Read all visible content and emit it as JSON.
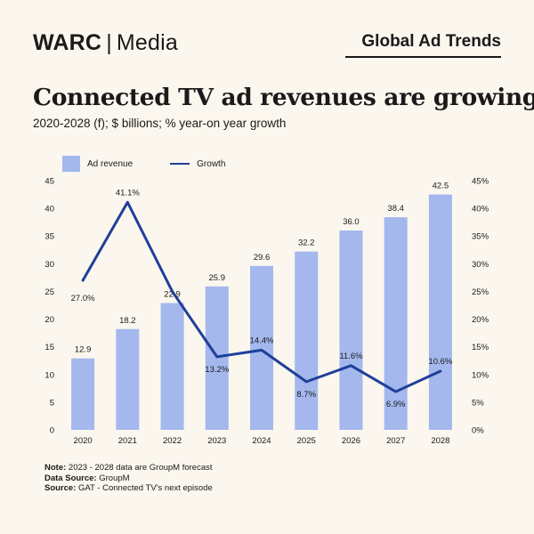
{
  "header": {
    "brand_left": "WARC",
    "brand_sep": "|",
    "brand_right": "Media",
    "series_name": "Global Ad Trends"
  },
  "title": "Connected TV ad revenues are growing",
  "subtitle": "2020-2028 (f); $ billions; % year-on year growth",
  "colors": {
    "bar": "#a4b8ee",
    "line": "#1f3f99",
    "background": "#fbf6ee"
  },
  "chart_data": {
    "type": "bar",
    "categories": [
      "2020",
      "2021",
      "2022",
      "2023",
      "2024",
      "2025",
      "2026",
      "2027",
      "2028"
    ],
    "series": [
      {
        "name": "Ad revenue",
        "type": "bar",
        "axis": "left",
        "values": [
          12.9,
          18.2,
          22.9,
          25.9,
          29.6,
          32.2,
          36.0,
          38.4,
          42.5
        ],
        "labels": [
          "12.9",
          "18.2",
          "22.9",
          "25.9",
          "29.6",
          "32.2",
          "36.0",
          "38.4",
          "42.5"
        ]
      },
      {
        "name": "Growth",
        "type": "line",
        "axis": "right",
        "values": [
          27.0,
          41.1,
          25.0,
          13.2,
          14.4,
          8.7,
          11.6,
          6.9,
          10.6
        ],
        "labels": [
          "27.0%",
          "41.1%",
          "",
          "13.2%",
          "14.4%",
          "8.7%",
          "11.6%",
          "6.9%",
          "10.6%"
        ]
      }
    ],
    "ylim_left": [
      0,
      45
    ],
    "yticks_left": [
      "0",
      "5",
      "10",
      "15",
      "20",
      "25",
      "30",
      "35",
      "40",
      "45"
    ],
    "ylim_right": [
      0,
      45
    ],
    "yticks_right": [
      "0%",
      "5%",
      "10%",
      "15%",
      "20%",
      "25%",
      "30%",
      "35%",
      "40%",
      "45%"
    ],
    "grid": false,
    "legend_position": "top-left"
  },
  "notes": [
    {
      "label": "Note:",
      "text": " 2023 - 2028 data are GroupM forecast"
    },
    {
      "label": "Data Source:",
      "text": " GroupM"
    },
    {
      "label": "Source:",
      "text": " GAT - Connected TV's next episode"
    }
  ]
}
